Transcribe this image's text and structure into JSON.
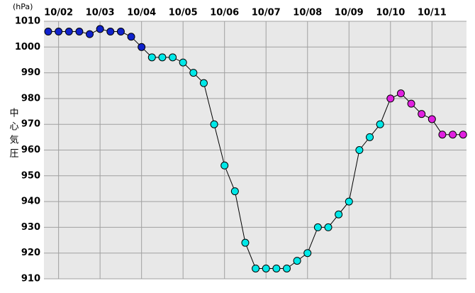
{
  "chart_data": {
    "type": "line",
    "y_label": "中心気圧",
    "y_unit": "(hPa)",
    "categories": [
      null,
      "10/02",
      null,
      null,
      null,
      "10/03",
      null,
      null,
      null,
      "10/04",
      null,
      null,
      null,
      "10/05",
      null,
      null,
      null,
      "10/06",
      null,
      null,
      null,
      "10/07",
      null,
      null,
      null,
      "10/08",
      null,
      null,
      null,
      "10/09",
      null,
      null,
      null,
      "10/10",
      null,
      null,
      null,
      "10/11",
      null,
      null,
      null
    ],
    "series": [
      {
        "name": "中心気圧",
        "color": "#000000",
        "values": [
          1006,
          1006,
          1006,
          1006,
          1005,
          1007,
          1006,
          1006,
          1004,
          1000,
          996,
          996,
          996,
          994,
          990,
          986,
          970,
          954,
          944,
          924,
          914,
          914,
          914,
          914,
          917,
          920,
          930,
          930,
          935,
          940,
          960,
          965,
          970,
          980,
          982,
          978,
          974,
          972,
          966,
          966,
          966
        ],
        "point_colors": [
          "#1022cc",
          "#1022cc",
          "#1022cc",
          "#1022cc",
          "#1022cc",
          "#1022cc",
          "#1022cc",
          "#1022cc",
          "#1022cc",
          "#1022cc",
          "#00e8e8",
          "#00e8e8",
          "#00e8e8",
          "#00e8e8",
          "#00e8e8",
          "#00e8e8",
          "#00e8e8",
          "#00e8e8",
          "#00e8e8",
          "#00e8e8",
          "#00e8e8",
          "#00e8e8",
          "#00e8e8",
          "#00e8e8",
          "#00e8e8",
          "#00e8e8",
          "#00e8e8",
          "#00e8e8",
          "#00e8e8",
          "#00e8e8",
          "#00e8e8",
          "#00e8e8",
          "#00e8e8",
          "#e020e0",
          "#e020e0",
          "#e020e0",
          "#e020e0",
          "#e020e0",
          "#e020e0",
          "#e020e0",
          "#e020e0"
        ]
      }
    ],
    "ylim": [
      910,
      1010
    ],
    "yticks": [
      910,
      920,
      930,
      940,
      950,
      960,
      970,
      980,
      990,
      1000,
      1010
    ],
    "grid": true
  }
}
